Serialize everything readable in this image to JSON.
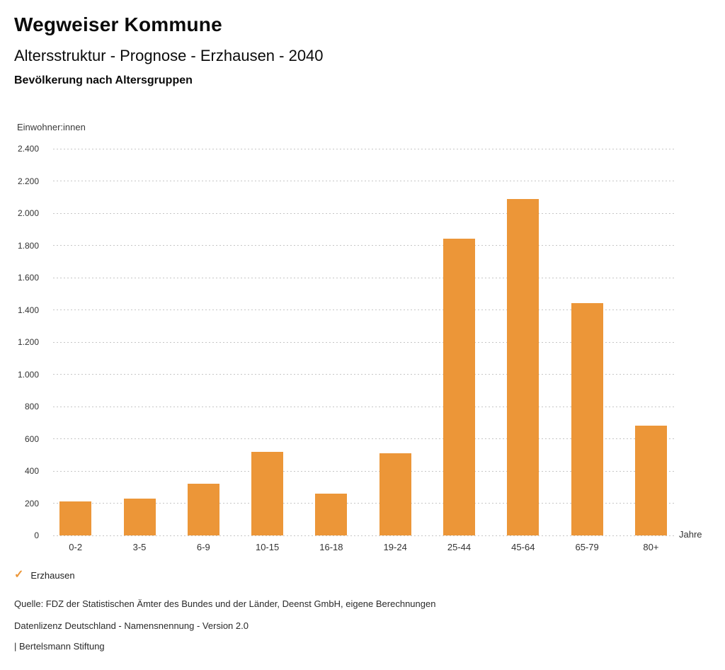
{
  "header": {
    "app_title": "Wegweiser Kommune",
    "chart_title": "Altersstruktur - Prognose - Erzhausen - 2040",
    "chart_subtitle": "Bevölkerung nach Altersgruppen"
  },
  "chart_data": {
    "type": "bar",
    "title": "Altersstruktur - Prognose - Erzhausen - 2040",
    "subtitle": "Bevölkerung nach Altersgruppen",
    "ylabel": "Einwohner:innen",
    "xlabel": "Jahre",
    "categories": [
      "0-2",
      "3-5",
      "6-9",
      "10-15",
      "16-18",
      "19-24",
      "25-44",
      "45-64",
      "65-79",
      "80+"
    ],
    "series": [
      {
        "name": "Erzhausen",
        "values": [
          210,
          230,
          320,
          520,
          260,
          510,
          1840,
          2090,
          1440,
          680
        ]
      }
    ],
    "ylim": [
      0,
      2400
    ],
    "ytick_step": 200,
    "ytick_labels": [
      "0",
      "200",
      "400",
      "600",
      "800",
      "1.000",
      "1.200",
      "1.400",
      "1.600",
      "1.800",
      "2.000",
      "2.200",
      "2.400"
    ],
    "grid": "horizontal-dotted",
    "legend_position": "bottom-left",
    "bar_color": "#EC9638",
    "gridline_color": "#c6c6c6"
  },
  "legend": {
    "items": [
      {
        "icon": "✓",
        "label": "Erzhausen",
        "color": "#EC9638"
      }
    ]
  },
  "footer": {
    "source": "Quelle: FDZ der Statistischen Ämter des Bundes und der Länder, Deenst GmbH, eigene Berechnungen",
    "license": "Datenlizenz Deutschland - Namensnennung - Version 2.0",
    "attribution": "| Bertelsmann Stiftung"
  }
}
